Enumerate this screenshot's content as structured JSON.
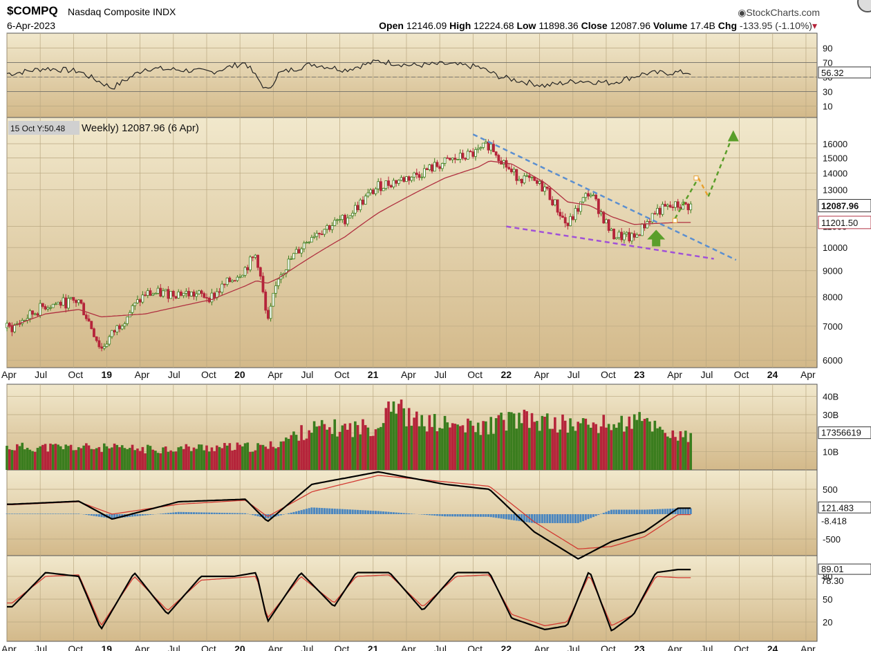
{
  "header": {
    "symbol": "$COMPQ",
    "name": "Nasdaq Composite INDX",
    "date": "6-Apr-2023",
    "brand": "StockCharts.com",
    "open_label": "Open",
    "open": "12146.09",
    "high_label": "High",
    "high": "12224.68",
    "low_label": "Low",
    "low": "11898.36",
    "close_label": "Close",
    "close": "12087.96",
    "volume_label": "Volume",
    "volume": "17.4B",
    "chg_label": "Chg",
    "chg": "-133.95 (-1.10%)"
  },
  "colors": {
    "up": "#3a7d1e",
    "down": "#b5243a",
    "ma": "#b03040",
    "trend_upper": "#5b8fd0",
    "trend_lower": "#a050d8",
    "projection_green": "#5a9e2a",
    "projection_orange": "#e8a030",
    "macd_hist": "#4a86c0",
    "background_top": "#f1e8cc",
    "background_bottom": "#d3b98a"
  },
  "chart_data": [
    {
      "type": "line",
      "panel": "RSI",
      "ylim": [
        0,
        100
      ],
      "yticks": [
        "90",
        "70",
        "50",
        "30",
        "10"
      ],
      "last_value": "56.32",
      "x": [
        "2018-04",
        "2018-07",
        "2018-10",
        "2019-01",
        "2019-04",
        "2019-07",
        "2019-10",
        "2020-01",
        "2020-03",
        "2020-04",
        "2020-07",
        "2020-10",
        "2021-01",
        "2021-04",
        "2021-07",
        "2021-10",
        "2021-12",
        "2022-04",
        "2022-07",
        "2022-10",
        "2023-01",
        "2023-04"
      ],
      "values": [
        55,
        62,
        58,
        35,
        62,
        60,
        57,
        70,
        30,
        55,
        68,
        60,
        72,
        66,
        68,
        64,
        50,
        38,
        45,
        42,
        55,
        56.32
      ]
    },
    {
      "type": "candlestick",
      "panel": "price",
      "scale": "log",
      "ylim": [
        5800,
        17800
      ],
      "yticks": [
        "16000",
        "15000",
        "14000",
        "13000",
        "11000",
        "10000",
        "9000",
        "8000",
        "7000",
        "6000"
      ],
      "legend_prefix": "15 Oct Y:50.48",
      "legend_text": "Weekly) 12087.96 (6 Apr)",
      "last_price_label": "12087.96",
      "ma_label": "11201.50",
      "x": [
        "2018-04",
        "2018-07",
        "2018-10",
        "2018-12",
        "2019-04",
        "2019-07",
        "2019-10",
        "2020-01",
        "2020-02",
        "2020-03",
        "2020-04",
        "2020-07",
        "2020-10",
        "2021-01",
        "2021-04",
        "2021-07",
        "2021-10",
        "2021-11",
        "2022-01",
        "2022-04",
        "2022-06",
        "2022-08",
        "2022-10",
        "2022-12",
        "2023-02",
        "2023-04"
      ],
      "values": [
        6950,
        7700,
        7850,
        6300,
        8100,
        8150,
        8000,
        9100,
        9700,
        7000,
        8800,
        10600,
        11400,
        13200,
        13800,
        14700,
        15400,
        16000,
        14000,
        13100,
        11000,
        12900,
        10600,
        10400,
        11800,
        12087.96
      ],
      "ma_values": [
        7000,
        7400,
        7550,
        7300,
        7400,
        7650,
        7900,
        8400,
        8600,
        8500,
        8700,
        9600,
        10500,
        11700,
        12700,
        13700,
        14400,
        14800,
        14600,
        13400,
        12300,
        12100,
        11500,
        11100,
        11150,
        11201.5
      ]
    },
    {
      "type": "bar",
      "panel": "volume",
      "yticks": [
        "40B",
        "30B",
        "20B",
        "10B"
      ],
      "last_value": "17356619",
      "x": [
        "2018-04",
        "2018-10",
        "2019-04",
        "2019-10",
        "2020-03",
        "2020-07",
        "2020-10",
        "2021-01",
        "2021-02",
        "2021-04",
        "2021-10",
        "2022-01",
        "2022-06",
        "2022-10",
        "2023-01",
        "2023-04"
      ],
      "values": [
        12,
        12,
        11,
        12,
        12,
        22,
        22,
        23,
        38,
        26,
        22,
        27,
        24,
        24,
        26,
        17.4
      ]
    },
    {
      "type": "line",
      "panel": "MACD",
      "yticks": [
        "500",
        "-500"
      ],
      "macd_label": "121.483",
      "signal_label": "-8.418",
      "x": [
        "2018-04",
        "2018-10",
        "2019-01",
        "2019-07",
        "2020-01",
        "2020-03",
        "2020-07",
        "2021-01",
        "2021-07",
        "2021-11",
        "2022-03",
        "2022-07",
        "2022-10",
        "2023-01",
        "2023-04"
      ],
      "macd": [
        200,
        260,
        -100,
        250,
        300,
        -150,
        600,
        850,
        600,
        500,
        -350,
        -900,
        -550,
        -350,
        121.483
      ],
      "signal": [
        190,
        250,
        0,
        200,
        280,
        -50,
        450,
        780,
        650,
        560,
        -150,
        -700,
        -650,
        -450,
        -8.418
      ]
    },
    {
      "type": "line",
      "panel": "Stochastic",
      "ylim": [
        0,
        100
      ],
      "yticks": [
        "80",
        "50",
        "20"
      ],
      "k_label": "89.01",
      "d_label": "78.30",
      "x": [
        "2018-04",
        "2018-07",
        "2018-10",
        "2018-12",
        "2019-03",
        "2019-06",
        "2019-09",
        "2019-12",
        "2020-02",
        "2020-03",
        "2020-06",
        "2020-09",
        "2020-11",
        "2021-02",
        "2021-05",
        "2021-08",
        "2021-11",
        "2022-01",
        "2022-04",
        "2022-06",
        "2022-08",
        "2022-10",
        "2022-12",
        "2023-02",
        "2023-04"
      ],
      "k": [
        40,
        85,
        80,
        10,
        85,
        30,
        80,
        80,
        85,
        20,
        85,
        40,
        85,
        85,
        35,
        85,
        85,
        25,
        10,
        15,
        88,
        8,
        30,
        85,
        89.01
      ],
      "d": [
        45,
        80,
        82,
        15,
        80,
        35,
        75,
        78,
        80,
        25,
        80,
        45,
        80,
        82,
        40,
        80,
        82,
        30,
        15,
        20,
        82,
        15,
        30,
        80,
        78.3
      ]
    }
  ],
  "x_axis": {
    "labels": [
      {
        "text": "Apr",
        "bold": false
      },
      {
        "text": "Jul",
        "bold": false
      },
      {
        "text": "Oct",
        "bold": false
      },
      {
        "text": "19",
        "bold": true
      },
      {
        "text": "Apr",
        "bold": false
      },
      {
        "text": "Jul",
        "bold": false
      },
      {
        "text": "Oct",
        "bold": false
      },
      {
        "text": "20",
        "bold": true
      },
      {
        "text": "Apr",
        "bold": false
      },
      {
        "text": "Jul",
        "bold": false
      },
      {
        "text": "Oct",
        "bold": false
      },
      {
        "text": "21",
        "bold": true
      },
      {
        "text": "Apr",
        "bold": false
      },
      {
        "text": "Jul",
        "bold": false
      },
      {
        "text": "Oct",
        "bold": false
      },
      {
        "text": "22",
        "bold": true
      },
      {
        "text": "Apr",
        "bold": false
      },
      {
        "text": "Jul",
        "bold": false
      },
      {
        "text": "Oct",
        "bold": false
      },
      {
        "text": "23",
        "bold": true
      },
      {
        "text": "Apr",
        "bold": false
      },
      {
        "text": "Jul",
        "bold": false
      },
      {
        "text": "Oct",
        "bold": false
      },
      {
        "text": "24",
        "bold": true
      },
      {
        "text": "Apr",
        "bold": false
      }
    ]
  }
}
